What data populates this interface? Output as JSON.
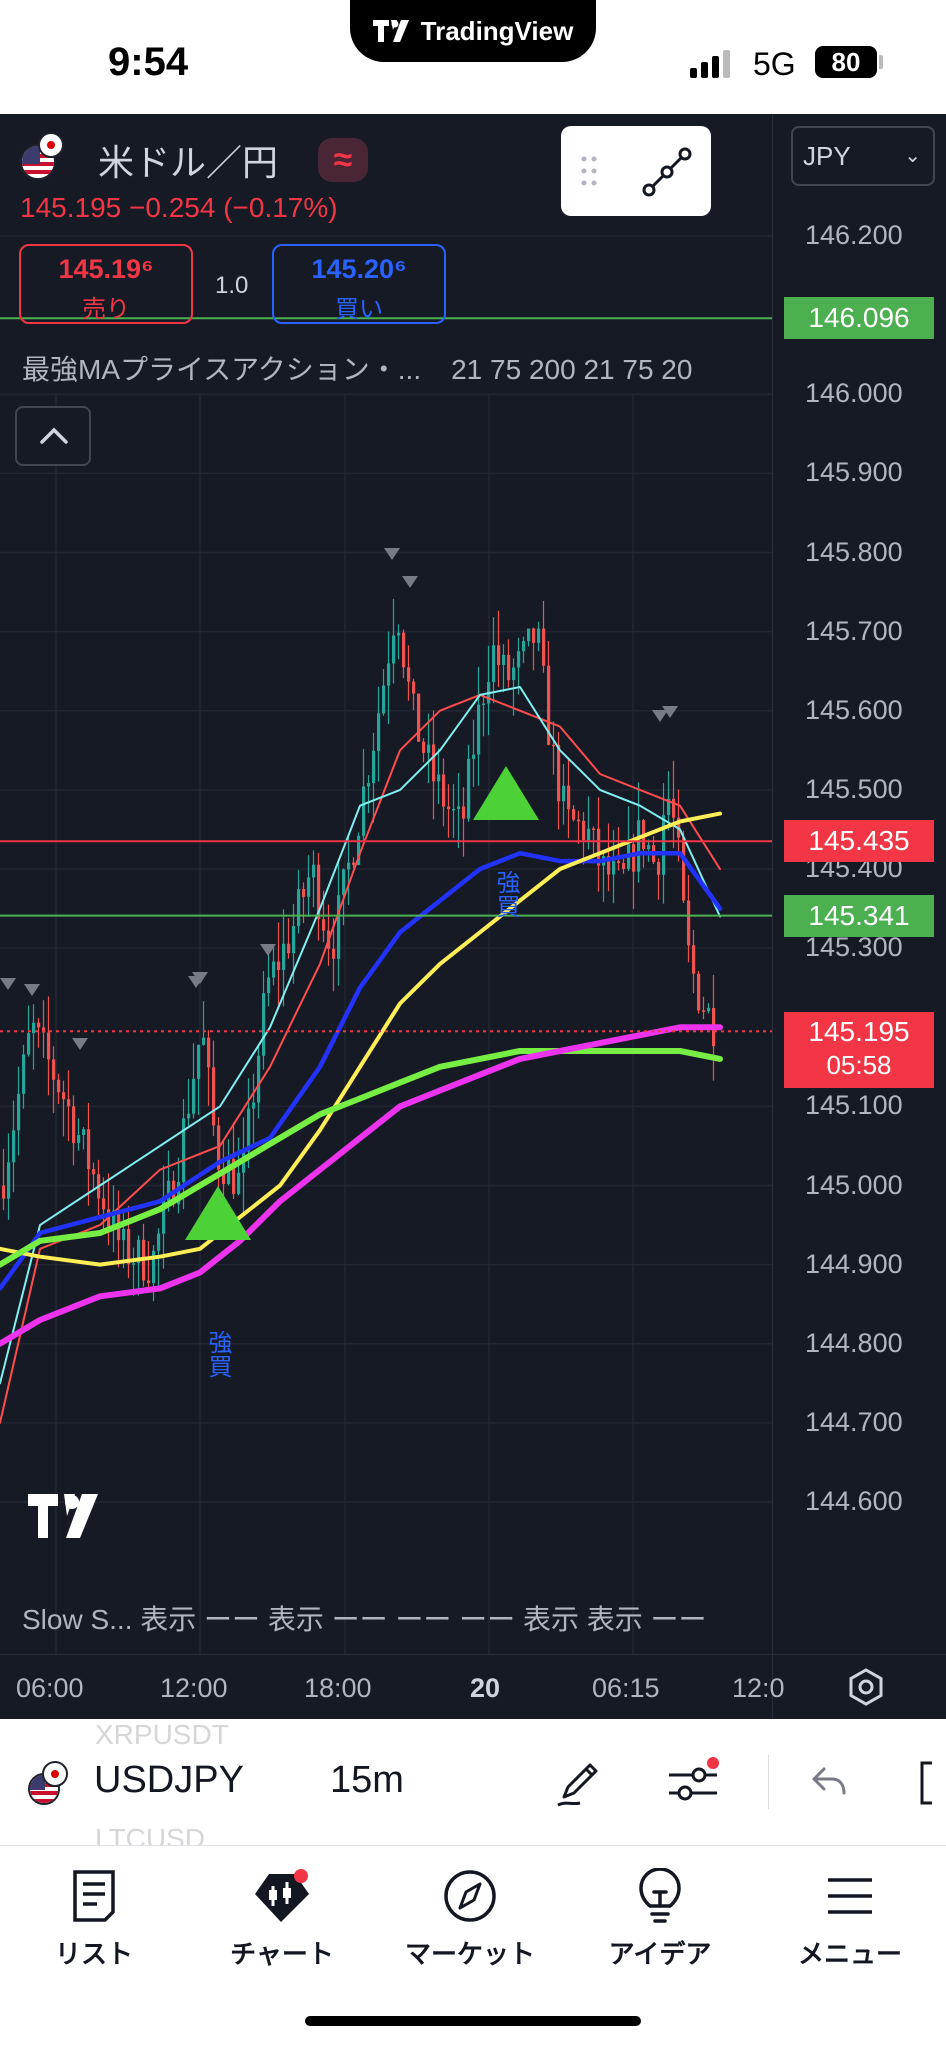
{
  "status_bar": {
    "time": "9:54",
    "app_name": "TradingView",
    "network": "5G",
    "battery": "80"
  },
  "symbol": {
    "name": "米ドル／円",
    "price_change": "145.195  −0.254  (−0.17%)",
    "sell": {
      "price": "145.19⁶",
      "label": "売り"
    },
    "buy": {
      "price": "145.20⁶",
      "label": "買い"
    },
    "quantity": "1.0"
  },
  "indicator": {
    "name": "最強MAプライスアクション・...",
    "params": "21 75 200 21 75 20"
  },
  "currency_select": "JPY",
  "chart_data": {
    "type": "candlestick",
    "yaxis_ticks": [
      "146.200",
      "146.000",
      "145.900",
      "145.800",
      "145.700",
      "145.600",
      "145.500",
      "145.400",
      "145.300",
      "145.100",
      "145.000",
      "144.900",
      "144.800",
      "144.700",
      "144.600"
    ],
    "xaxis_ticks": [
      "06:00",
      "12:00",
      "18:00",
      "20",
      "06:15",
      "12:0"
    ],
    "ylim": [
      144.52,
      146.32
    ],
    "price_labels": [
      {
        "value": "146.096",
        "color": "#4caf50"
      },
      {
        "value": "145.435",
        "color": "#f23645"
      },
      {
        "value": "145.341",
        "color": "#4caf50"
      }
    ],
    "current": {
      "price": "145.195",
      "countdown": "05:58"
    },
    "signals": [
      {
        "label": "強買",
        "position": "left"
      },
      {
        "label": "強買",
        "position": "middle"
      }
    ],
    "ma_colors": [
      "#ff4d4d",
      "#80f0f0",
      "#2233ff",
      "#ffee55",
      "#77ee44",
      "#ee33ee"
    ]
  },
  "sub_indicator_row": "Slow S...  表示  ーー  表示  ーー  ーー  ーー  表示  表示  ーー",
  "toolbar": {
    "ghost_above": "XRPUSDT",
    "ghost_below": "LTCUSD",
    "symbol": "USDJPY",
    "interval": "15m"
  },
  "nav": {
    "items": [
      {
        "label": "リスト",
        "icon": "watchlist-icon"
      },
      {
        "label": "チャート",
        "icon": "chart-icon"
      },
      {
        "label": "マーケット",
        "icon": "compass-icon"
      },
      {
        "label": "アイデア",
        "icon": "lightbulb-icon"
      },
      {
        "label": "メニュー",
        "icon": "menu-icon"
      }
    ]
  }
}
